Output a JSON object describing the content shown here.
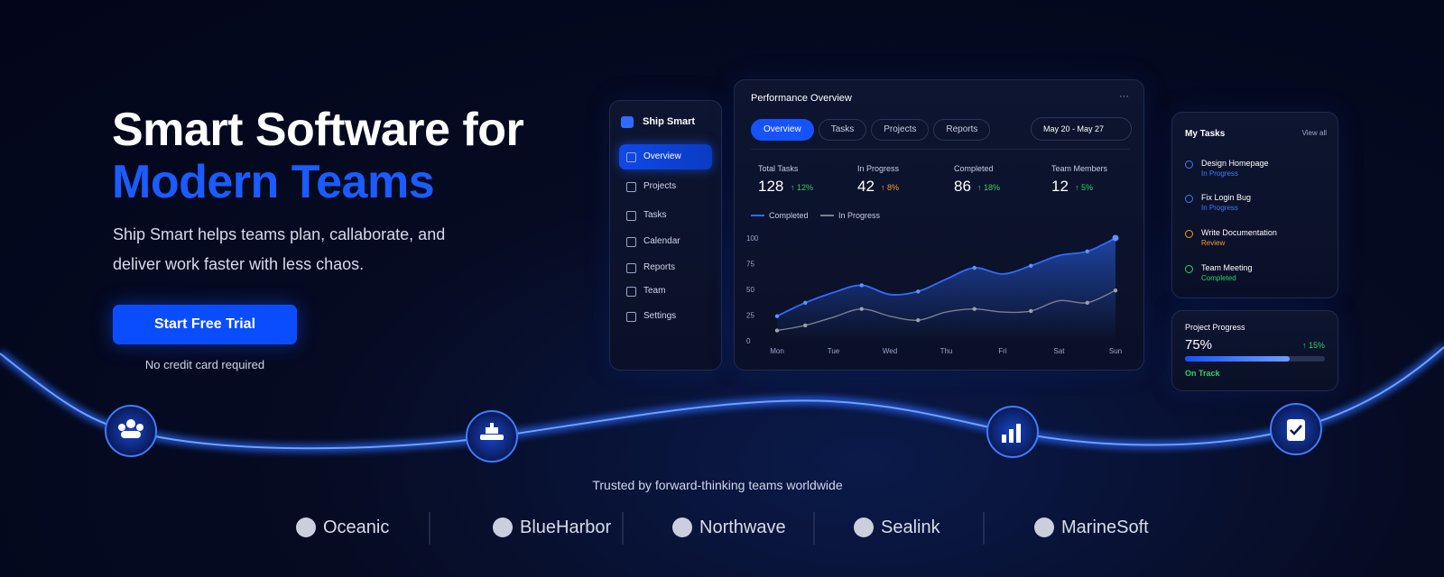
{
  "hero": {
    "title_line1": "Smart Software for",
    "title_line2": "Modern Teams",
    "description": "Ship Smart helps teams plan, callaborate, and deliver work faster with less chaos.",
    "cta": "Start Free Trial",
    "cta_note": "No credit card required"
  },
  "sidebar": {
    "brand": "Ship Smart",
    "items": [
      "Overview",
      "Projects",
      "Tasks",
      "Calendar",
      "Reports",
      "Team",
      "Settings"
    ]
  },
  "dashboard": {
    "title": "Performance Overview",
    "menu": "···",
    "tabs": [
      "Overview",
      "Tasks",
      "Projects",
      "Reports"
    ],
    "date_range": "May 20 - May 27",
    "stats": [
      {
        "label": "Total Tasks",
        "value": "128",
        "change": "↑ 12%",
        "color": "#2fd06a"
      },
      {
        "label": "In Progress",
        "value": "42",
        "change": "↑ 8%",
        "color": "#f59a2c"
      },
      {
        "label": "Completed",
        "value": "86",
        "change": "↑ 18%",
        "color": "#2fd06a"
      },
      {
        "label": "Team Members",
        "value": "12",
        "change": "↑ 5%",
        "color": "#2fd06a"
      }
    ]
  },
  "chart_data": {
    "type": "line",
    "categories": [
      "Mon",
      null,
      "Tue",
      null,
      "Wed",
      null,
      "Thu",
      null,
      "Fri",
      null,
      "Sat",
      null,
      "Sun"
    ],
    "series": [
      {
        "name": "Completed",
        "color": "#2f6bff",
        "values": [
          24,
          37,
          47,
          54,
          45,
          48,
          60,
          71,
          65,
          73,
          83,
          87,
          100
        ]
      },
      {
        "name": "In Progress",
        "color": "#7a7f8c",
        "values": [
          10,
          15,
          23,
          31,
          24,
          20,
          28,
          31,
          28,
          29,
          39,
          37,
          49
        ]
      }
    ],
    "ylim": [
      0,
      100
    ],
    "yticks": [
      0,
      25,
      50,
      75,
      100
    ]
  },
  "tasks": {
    "title": "My Tasks",
    "view_all": "View all",
    "items": [
      {
        "title": "Design Homepage",
        "status": "In Progress",
        "color": "#3a7bff"
      },
      {
        "title": "Fix Login Bug",
        "status": "In Progress",
        "color": "#3a7bff"
      },
      {
        "title": "Write Documentation",
        "status": "Review",
        "color": "#f59a2c"
      },
      {
        "title": "Team Meeting",
        "status": "Completed",
        "color": "#2fd06a"
      }
    ]
  },
  "project": {
    "label": "Project Progress",
    "progress": {
      "value": 75,
      "label": "75%"
    },
    "change": "↑ 15%",
    "status": "On Track"
  },
  "trusted": {
    "text": "Trusted by forward-thinking teams worldwide",
    "logos": [
      "Oceanic",
      "BlueHarbor",
      "Northwave",
      "Sealink",
      "MarineSoft"
    ]
  }
}
